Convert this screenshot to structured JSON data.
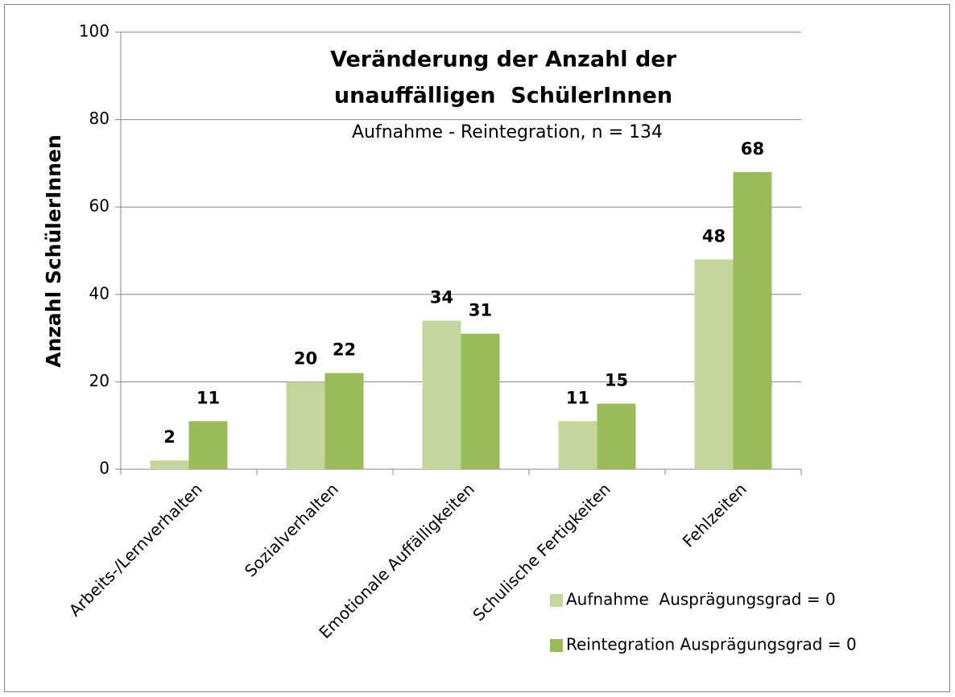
{
  "chart_data": {
    "type": "bar",
    "title": [
      "Veränderung der Anzahl der",
      "unauffälligen  SchülerInnen"
    ],
    "subtitle": "Aufnahme - Reintegration, n = 134",
    "y_label": "Anzahl SchülerInnen",
    "categories": [
      "Arbeits-/Lernverhalten",
      "Sozialverhalten",
      "Emotionale Auffälligkeiten",
      "Schulische Fertigkeiten",
      "Fehlzeiten"
    ],
    "series": [
      {
        "name": "Aufnahme  Ausprägungsgrad = 0",
        "color": "#c3d69b",
        "values": [
          2,
          20,
          34,
          11,
          48
        ]
      },
      {
        "name": "Reintegration Ausprägungsgrad = 0",
        "color": "#9bbb59",
        "values": [
          11,
          22,
          31,
          15,
          68
        ]
      }
    ],
    "ylim": [
      0,
      100
    ],
    "yticks": [
      0,
      20,
      40,
      60,
      80,
      100
    ],
    "grid": true,
    "legend": "lower right"
  }
}
